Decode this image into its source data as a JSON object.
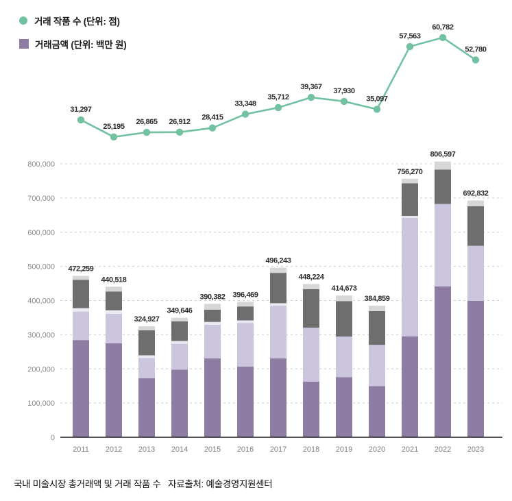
{
  "legend": {
    "line_label": "거래 작품 수 (단위: 점)",
    "bar_label": "거래금액 (단위: 백만 원)"
  },
  "caption": {
    "title": "국내 미술시장 총거래액 및 거래 작품 수",
    "source": "자료출처: 예술경영지원센터"
  },
  "colors": {
    "line_green": "#72c1a1",
    "bar_purple": "#8e7ca3",
    "bar_lavender": "#cbc5dd",
    "bar_pale": "#eae8f1",
    "bar_darkgray": "#6e6e6e",
    "bar_capgray": "#d7d7d7",
    "gridline": "#cccccc",
    "axis_line": "#1a1a1a",
    "tick_text": "#8a8a8a"
  },
  "chart_data": {
    "type": "combo",
    "title": "국내 미술시장 총거래액 및 거래 작품 수",
    "categories": [
      2011,
      2012,
      2013,
      2014,
      2015,
      2016,
      2017,
      2018,
      2019,
      2020,
      2021,
      2022,
      2023
    ],
    "line_series": {
      "name": "거래 작품 수 (단위: 점)",
      "unit": "점",
      "color": "#72c1a1",
      "values": [
        31297,
        25195,
        26865,
        26912,
        28415,
        33348,
        35712,
        39367,
        37930,
        35097,
        57563,
        60782,
        52780
      ]
    },
    "bar_series": {
      "name": "거래금액 (단위: 백만 원)",
      "unit": "백만 원",
      "totals": [
        472259,
        440518,
        324927,
        349646,
        390382,
        396469,
        496243,
        448224,
        414673,
        384859,
        756270,
        806597,
        692832
      ],
      "segment_colors": [
        "#8e7ca3",
        "#cbc5dd",
        "#eae8f1",
        "#6e6e6e",
        "#d7d7d7"
      ],
      "segment_names": [
        "purple-bottom",
        "lavender",
        "pale-sliver",
        "dark-gray",
        "light-gray-cap"
      ],
      "stacks": [
        [
          284400,
          83200,
          10100,
          83100,
          11459
        ],
        [
          275000,
          86100,
          10400,
          55000,
          14018
        ],
        [
          172600,
          59000,
          8100,
          73100,
          12127
        ],
        [
          198000,
          75500,
          8100,
          57700,
          10346
        ],
        [
          230700,
          98500,
          8200,
          36000,
          16982
        ],
        [
          207000,
          127500,
          7300,
          40900,
          13769
        ],
        [
          231100,
          153800,
          7300,
          88700,
          15343
        ],
        [
          163000,
          157500,
          0,
          112700,
          15024
        ],
        [
          176000,
          118700,
          0,
          103700,
          16273
        ],
        [
          149800,
          120500,
          0,
          98600,
          15959
        ],
        [
          295400,
          346700,
          5400,
          95500,
          13270
        ],
        [
          441400,
          241100,
          0,
          100600,
          23497
        ],
        [
          399000,
          161200,
          0,
          115500,
          17132
        ]
      ]
    },
    "y_axis": {
      "min": 0,
      "max": 800000,
      "tick_step": 100000,
      "tick_labels": [
        "0",
        "100,000",
        "200,000",
        "300,000",
        "400,000",
        "500,000",
        "600,000",
        "700,000",
        "800,000"
      ],
      "grid": "dashed"
    },
    "legend_position": "top-left"
  }
}
